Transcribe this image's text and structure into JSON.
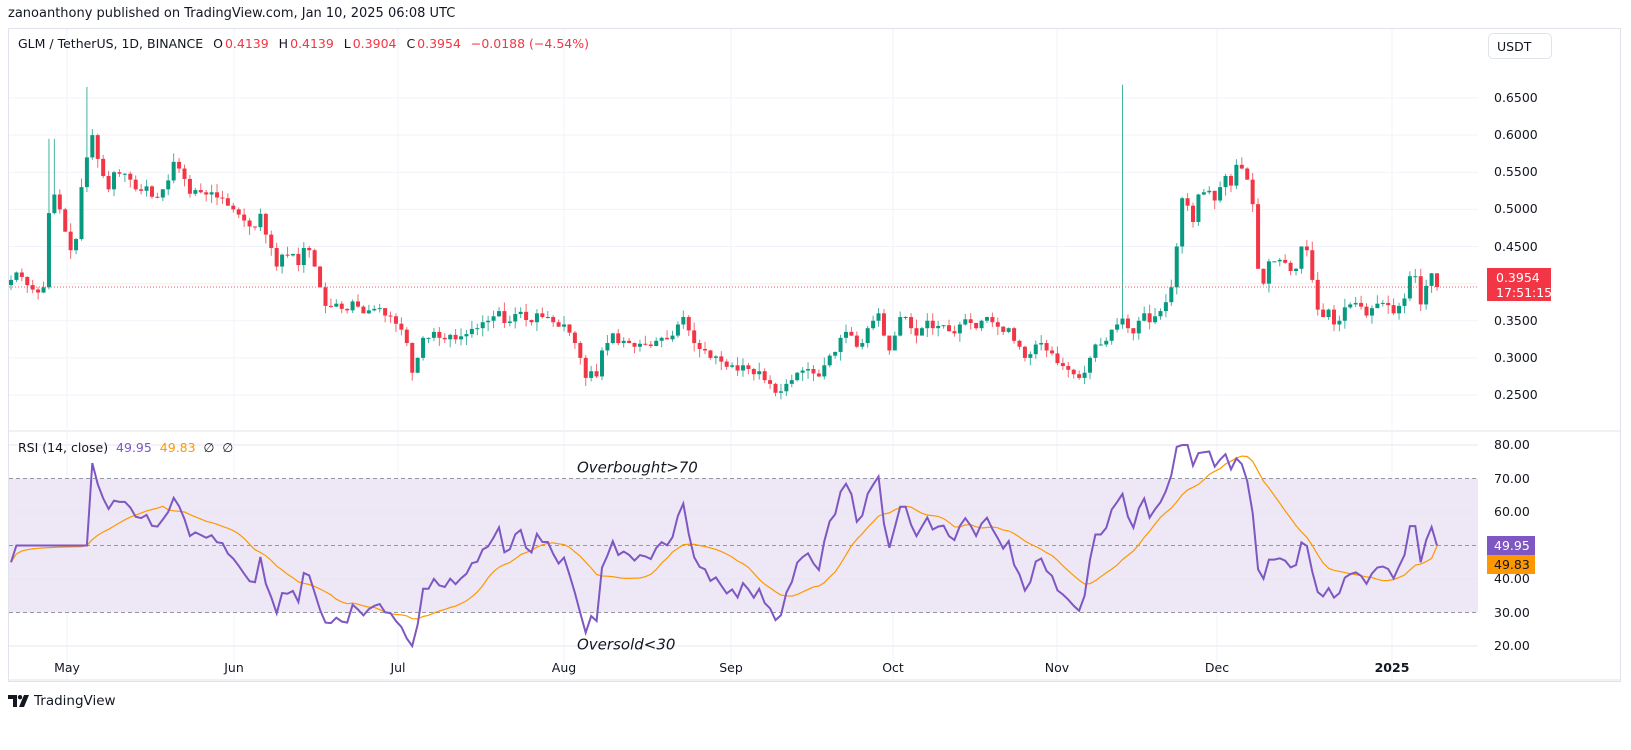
{
  "header": {
    "publisher": "zanoanthony published on TradingView.com, Jan 10, 2025 06:08 UTC"
  },
  "legend": {
    "symbol": "GLM / TetherUS, 1D, BINANCE",
    "o_label": "O",
    "o_value": "0.4139",
    "h_label": "H",
    "h_value": "0.4139",
    "l_label": "L",
    "l_value": "0.3904",
    "c_label": "C",
    "c_value": "0.3954",
    "change": "−0.0188 (−4.54%)"
  },
  "price_axis": {
    "currency_button": "USDT",
    "ticks": [
      "0.6500",
      "0.6000",
      "0.5500",
      "0.5000",
      "0.4500",
      "0.4000",
      "0.3500",
      "0.3000",
      "0.2500"
    ],
    "last_price": "0.3954",
    "countdown": "17:51:15"
  },
  "rsi": {
    "label": "RSI (14, close)",
    "rsi_value": "49.95",
    "ma_value": "49.83",
    "extra1": "∅",
    "extra2": "∅",
    "ticks": [
      "80.00",
      "70.00",
      "60.00",
      "50.00",
      "40.00",
      "30.00",
      "20.00"
    ],
    "overbought_text": "Overbought>70",
    "oversold_text": "Oversold<30"
  },
  "time_axis": {
    "labels": [
      "May",
      "Jun",
      "Jul",
      "Aug",
      "Sep",
      "Oct",
      "Nov",
      "Dec",
      "2025"
    ]
  },
  "footer": {
    "brand": "TradingView"
  },
  "colors": {
    "up": "#089981",
    "down": "#f23645",
    "rsi_line": "#7e57c2",
    "rsi_ma": "#ff9800",
    "rsi_band": "#ede7f6",
    "grid": "#f0f3fa"
  },
  "chart_data": [
    {
      "type": "candlestick",
      "title": "GLM / TetherUS, 1D, BINANCE",
      "ylabel": "USDT",
      "ylim": [
        0.22,
        0.67
      ],
      "x_ticks": [
        "May",
        "Jun",
        "Jul",
        "Aug",
        "Sep",
        "Oct",
        "Nov",
        "Dec",
        "2025"
      ],
      "last": {
        "open": 0.4139,
        "high": 0.4139,
        "low": 0.3904,
        "close": 0.3954,
        "change": -0.0188,
        "change_pct": -4.54
      },
      "closes": [
        0.405,
        0.415,
        0.409,
        0.398,
        0.392,
        0.388,
        0.395,
        0.495,
        0.52,
        0.5,
        0.47,
        0.445,
        0.46,
        0.53,
        0.57,
        0.6,
        0.568,
        0.545,
        0.527,
        0.55,
        0.548,
        0.548,
        0.54,
        0.527,
        0.525,
        0.531,
        0.517,
        0.516,
        0.527,
        0.539,
        0.564,
        0.555,
        0.541,
        0.521,
        0.526,
        0.523,
        0.52,
        0.523,
        0.516,
        0.515,
        0.505,
        0.5,
        0.493,
        0.485,
        0.477,
        0.476,
        0.494,
        0.466,
        0.448,
        0.423,
        0.439,
        0.438,
        0.44,
        0.425,
        0.448,
        0.445,
        0.423,
        0.395,
        0.37,
        0.369,
        0.373,
        0.366,
        0.364,
        0.376,
        0.369,
        0.36,
        0.364,
        0.366,
        0.367,
        0.357,
        0.356,
        0.346,
        0.338,
        0.32,
        0.28,
        0.3,
        0.327,
        0.327,
        0.335,
        0.327,
        0.325,
        0.331,
        0.325,
        0.329,
        0.332,
        0.339,
        0.34,
        0.348,
        0.35,
        0.356,
        0.363,
        0.347,
        0.349,
        0.359,
        0.362,
        0.351,
        0.348,
        0.36,
        0.355,
        0.355,
        0.348,
        0.342,
        0.345,
        0.334,
        0.32,
        0.3,
        0.273,
        0.282,
        0.275,
        0.31,
        0.32,
        0.333,
        0.32,
        0.323,
        0.32,
        0.315,
        0.319,
        0.318,
        0.316,
        0.323,
        0.327,
        0.325,
        0.33,
        0.345,
        0.355,
        0.337,
        0.32,
        0.312,
        0.31,
        0.3,
        0.302,
        0.295,
        0.288,
        0.29,
        0.283,
        0.29,
        0.285,
        0.278,
        0.282,
        0.27,
        0.265,
        0.253,
        0.255,
        0.265,
        0.27,
        0.28,
        0.283,
        0.285,
        0.279,
        0.275,
        0.29,
        0.303,
        0.308,
        0.327,
        0.335,
        0.33,
        0.315,
        0.32,
        0.34,
        0.35,
        0.36,
        0.33,
        0.31,
        0.33,
        0.355,
        0.355,
        0.34,
        0.33,
        0.34,
        0.35,
        0.34,
        0.343,
        0.344,
        0.336,
        0.333,
        0.345,
        0.352,
        0.347,
        0.34,
        0.35,
        0.355,
        0.348,
        0.342,
        0.335,
        0.34,
        0.323,
        0.315,
        0.3,
        0.305,
        0.318,
        0.32,
        0.31,
        0.306,
        0.293,
        0.289,
        0.284,
        0.278,
        0.273,
        0.28,
        0.3,
        0.318,
        0.318,
        0.323,
        0.338,
        0.345,
        0.353,
        0.34,
        0.333,
        0.35,
        0.36,
        0.348,
        0.356,
        0.363,
        0.375,
        0.395,
        0.45,
        0.515,
        0.505,
        0.483,
        0.52,
        0.523,
        0.525,
        0.512,
        0.53,
        0.545,
        0.532,
        0.56,
        0.555,
        0.54,
        0.507,
        0.42,
        0.4,
        0.43,
        0.43,
        0.432,
        0.428,
        0.417,
        0.42,
        0.45,
        0.445,
        0.405,
        0.365,
        0.355,
        0.365,
        0.345,
        0.35,
        0.368,
        0.372,
        0.374,
        0.369,
        0.357,
        0.367,
        0.373,
        0.374,
        0.371,
        0.36,
        0.37,
        0.38,
        0.41,
        0.41,
        0.372,
        0.397,
        0.4139,
        0.3954
      ]
    },
    {
      "type": "line",
      "title": "RSI (14, close)",
      "ylim": [
        20,
        80
      ],
      "bands": {
        "overbought": 70,
        "middle": 50,
        "oversold": 30
      },
      "series": [
        {
          "name": "RSI",
          "last": 49.95
        },
        {
          "name": "RSI-based MA",
          "last": 49.83
        }
      ]
    }
  ]
}
